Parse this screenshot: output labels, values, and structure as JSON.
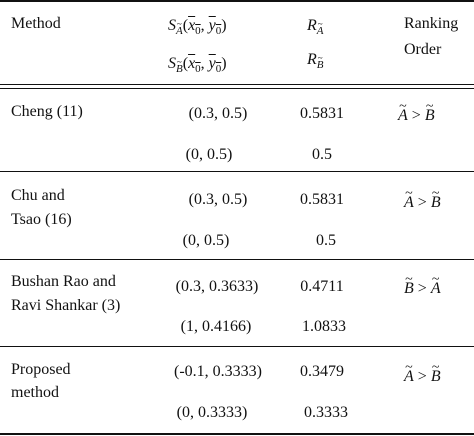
{
  "header": {
    "method": "Method",
    "s_func": "S",
    "x0": "x",
    "y0": "y",
    "idx0": "0",
    "r_func": "R",
    "ranking_line1": "Ranking",
    "ranking_line2": "Order",
    "set_a": "A",
    "set_b": "B"
  },
  "rows": [
    {
      "method": [
        "Cheng (11)"
      ],
      "s_a": "(0.3, 0.5)",
      "r_a": "0.5831",
      "s_b": "(0, 0.5)",
      "r_b": "0.5",
      "order": {
        "first": "A",
        "op": ">",
        "second": "B"
      }
    },
    {
      "method": [
        "Chu and",
        "Tsao (16)"
      ],
      "s_a": "(0.3, 0.5)",
      "r_a": "0.5831",
      "s_b": "(0, 0.5)",
      "r_b": "0.5",
      "order": {
        "first": "A",
        "op": ">",
        "second": "B"
      }
    },
    {
      "method": [
        "Bushan Rao and",
        "Ravi Shankar (3)"
      ],
      "s_a": "(0.3, 0.3633)",
      "r_a": "0.4711",
      "s_b": "(1, 0.4166)",
      "r_b": "1.0833",
      "order": {
        "first": "B",
        "op": ">",
        "second": "A"
      }
    },
    {
      "method": [
        "Proposed",
        "method"
      ],
      "s_a": "(-0.1, 0.3333)",
      "r_a": "0.3479",
      "s_b": "(0, 0.3333)",
      "r_b": "0.3333",
      "order": {
        "first": "A",
        "op": ">",
        "second": "B"
      }
    }
  ]
}
